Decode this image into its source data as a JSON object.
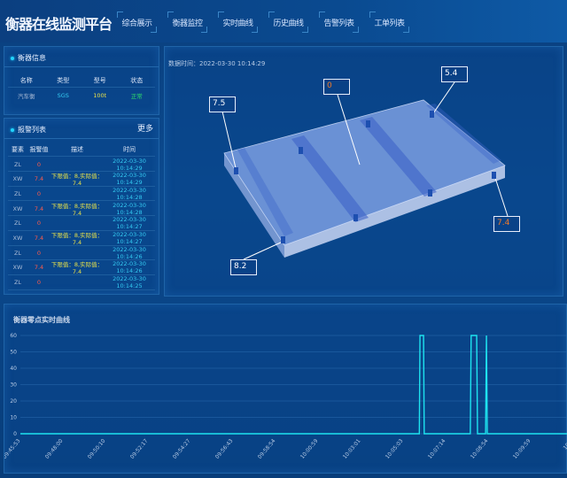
{
  "header": {
    "title": "衡器在线监测平台",
    "nav": [
      "综合展示",
      "衡器监控",
      "实时曲线",
      "历史曲线",
      "告警列表",
      "工单列表"
    ]
  },
  "scale_info": {
    "title": "衡器信息",
    "columns": [
      "名称",
      "类型",
      "型号",
      "状态"
    ],
    "row": {
      "name": "汽车衡",
      "type": "SGS",
      "model": "100t",
      "status": "正常"
    }
  },
  "alarm_list": {
    "title": "报警列表",
    "more": "更多",
    "columns": [
      "要素",
      "报警值",
      "描述",
      "时间"
    ],
    "rows": [
      {
        "el": "ZL",
        "val": "0",
        "desc": "",
        "time": "2022-03-30 10:14:29"
      },
      {
        "el": "XW",
        "val": "7.4",
        "desc": "下限值：8,实际值：7.4",
        "time": "2022-03-30 10:14:29"
      },
      {
        "el": "ZL",
        "val": "0",
        "desc": "",
        "time": "2022-03-30 10:14:28"
      },
      {
        "el": "XW",
        "val": "7.4",
        "desc": "下限值：8,实际值：7.4",
        "time": "2022-03-30 10:14:28"
      },
      {
        "el": "ZL",
        "val": "0",
        "desc": "",
        "time": "2022-03-30 10:14:27"
      },
      {
        "el": "XW",
        "val": "7.4",
        "desc": "下限值：8,实际值：7.4",
        "time": "2022-03-30 10:14:27"
      },
      {
        "el": "ZL",
        "val": "0",
        "desc": "",
        "time": "2022-03-30 10:14:26"
      },
      {
        "el": "XW",
        "val": "7.4",
        "desc": "下限值：8,实际值：7.4",
        "time": "2022-03-30 10:14:26"
      },
      {
        "el": "ZL",
        "val": "0",
        "desc": "",
        "time": "2022-03-30 10:14:25"
      }
    ]
  },
  "model_view": {
    "data_time": "数据时间：2022-03-30 10:14:29",
    "sensors": {
      "top_left": "7.5",
      "center": "0",
      "top_right": "5.4",
      "right": "7.4",
      "bottom_left": "8.2"
    },
    "alert_color": "#f07a2a"
  },
  "chart_data": {
    "type": "line",
    "title": "衡器零点实时曲线",
    "ylim": [
      0,
      60
    ],
    "yticks": [
      0,
      10,
      20,
      30,
      40,
      50,
      60
    ],
    "grid": true,
    "line_color": "#1ee3f0",
    "xticks": [
      "09:45:53",
      "09:48:00",
      "09:50:10",
      "09:52:17",
      "09:54:27",
      "09:56:43",
      "09:58:54",
      "10:00:59",
      "10:03:01",
      "10:05:03",
      "10:07:14",
      "10:08:54",
      "10:09:59",
      "10:1"
    ],
    "points": [
      [
        "09:45:53",
        0
      ],
      [
        "10:05:53",
        0
      ],
      [
        "10:05:55",
        60
      ],
      [
        "10:06:06",
        60
      ],
      [
        "10:06:08",
        0
      ],
      [
        "10:08:12",
        0
      ],
      [
        "10:08:14",
        60
      ],
      [
        "10:08:27",
        60
      ],
      [
        "10:08:29",
        0
      ],
      [
        "10:08:48",
        0
      ],
      [
        "10:08:50",
        60
      ],
      [
        "10:08:52",
        0
      ],
      [
        "10:11:00",
        0
      ]
    ]
  }
}
